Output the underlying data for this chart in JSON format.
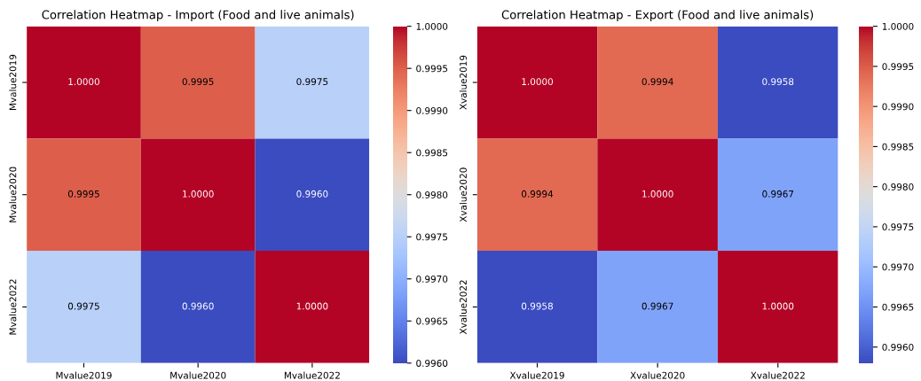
{
  "chart_data": [
    {
      "type": "heatmap",
      "title": "Correlation Heatmap - Import (Food and live animals)",
      "categories": [
        "Mvalue2019",
        "Mvalue2020",
        "Mvalue2022"
      ],
      "y_categories": [
        "Mvalue2019",
        "Mvalue2020",
        "Mvalue2022"
      ],
      "cells": [
        [
          1.0,
          0.9995,
          0.9975
        ],
        [
          0.9995,
          1.0,
          0.996
        ],
        [
          0.9975,
          0.996,
          1.0
        ]
      ],
      "cell_labels": [
        [
          "1.0000",
          "0.9995",
          "0.9975"
        ],
        [
          "0.9995",
          "1.0000",
          "0.9960"
        ],
        [
          "0.9975",
          "0.9960",
          "1.0000"
        ]
      ],
      "clim": [
        0.996,
        1.0
      ],
      "cticks": [
        {
          "value": 0.996,
          "label": "0.9960"
        },
        {
          "value": 0.9965,
          "label": "0.9965"
        },
        {
          "value": 0.997,
          "label": "0.9970"
        },
        {
          "value": 0.9975,
          "label": "0.9975"
        },
        {
          "value": 0.998,
          "label": "0.9980"
        },
        {
          "value": 0.9985,
          "label": "0.9985"
        },
        {
          "value": 0.999,
          "label": "0.9990"
        },
        {
          "value": 0.9995,
          "label": "0.9995"
        },
        {
          "value": 1.0,
          "label": "1.0000"
        }
      ]
    },
    {
      "type": "heatmap",
      "title": "Correlation Heatmap - Export (Food and live animals)",
      "categories": [
        "Xvalue2019",
        "Xvalue2020",
        "Xvalue2022"
      ],
      "y_categories": [
        "Xvalue2019",
        "Xvalue2020",
        "Xvalue2022"
      ],
      "cells": [
        [
          1.0,
          0.9994,
          0.9958
        ],
        [
          0.9994,
          1.0,
          0.9967
        ],
        [
          0.9958,
          0.9967,
          1.0
        ]
      ],
      "cell_labels": [
        [
          "1.0000",
          "0.9994",
          "0.9958"
        ],
        [
          "0.9994",
          "1.0000",
          "0.9967"
        ],
        [
          "0.9958",
          "0.9967",
          "1.0000"
        ]
      ],
      "clim": [
        0.9958,
        1.0
      ],
      "cticks": [
        {
          "value": 0.996,
          "label": "0.9960"
        },
        {
          "value": 0.9965,
          "label": "0.9965"
        },
        {
          "value": 0.997,
          "label": "0.9970"
        },
        {
          "value": 0.9975,
          "label": "0.9975"
        },
        {
          "value": 0.998,
          "label": "0.9980"
        },
        {
          "value": 0.9985,
          "label": "0.9985"
        },
        {
          "value": 0.999,
          "label": "0.9990"
        },
        {
          "value": 0.9995,
          "label": "0.9995"
        },
        {
          "value": 1.0,
          "label": "1.0000"
        }
      ]
    }
  ]
}
